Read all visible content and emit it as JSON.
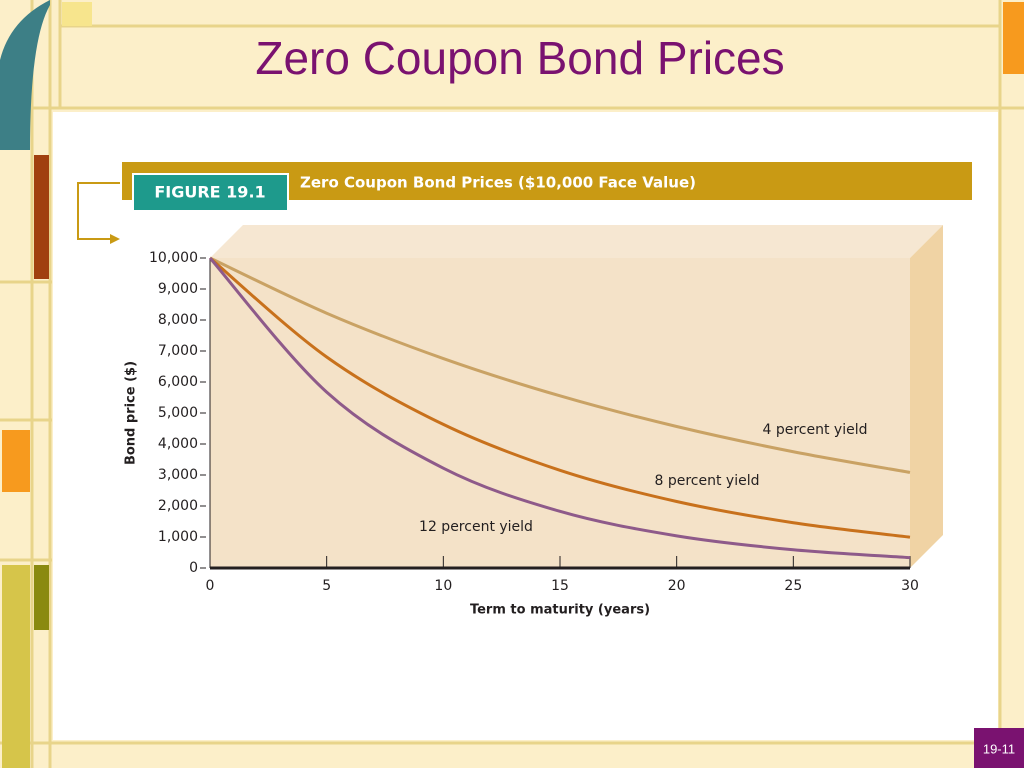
{
  "slide": {
    "title": "Zero Coupon Bond Prices",
    "page_number": "19-11"
  },
  "chart_data": {
    "type": "line",
    "figure_label": "FIGURE 19.1",
    "title": "Zero Coupon Bond Prices ($10,000 Face Value)",
    "x_label": "Term to maturity (years)",
    "y_label": "Bond price ($)",
    "x": [
      0,
      5,
      10,
      15,
      20,
      25,
      30
    ],
    "series": [
      {
        "name": "4 percent yield",
        "color": "#c9a264",
        "values": [
          10000,
          8219,
          6756,
          5553,
          4564,
          3751,
          3083
        ]
      },
      {
        "name": "8 percent yield",
        "color": "#c8711c",
        "values": [
          10000,
          6806,
          4632,
          3152,
          2145,
          1460,
          994
        ]
      },
      {
        "name": "12 percent yield",
        "color": "#8e5a8a",
        "values": [
          10000,
          5674,
          3220,
          1827,
          1037,
          588,
          334
        ]
      }
    ],
    "xlim": [
      0,
      30
    ],
    "xticks": [
      0,
      5,
      10,
      15,
      20,
      25,
      30
    ],
    "ylim": [
      0,
      10000
    ],
    "yticks": [
      0,
      {
        "value": 1000,
        "label": "1,000"
      },
      {
        "value": 2000,
        "label": "2,000"
      },
      {
        "value": 3000,
        "label": "3,000"
      },
      {
        "value": 4000,
        "label": "4,000"
      },
      {
        "value": 5000,
        "label": "5,000"
      },
      {
        "value": 6000,
        "label": "6,000"
      },
      {
        "value": 7000,
        "label": "7,000"
      },
      {
        "value": 8000,
        "label": "8,000"
      },
      {
        "value": 9000,
        "label": "9,000"
      },
      {
        "value": 10000,
        "label": "10,000"
      }
    ]
  }
}
